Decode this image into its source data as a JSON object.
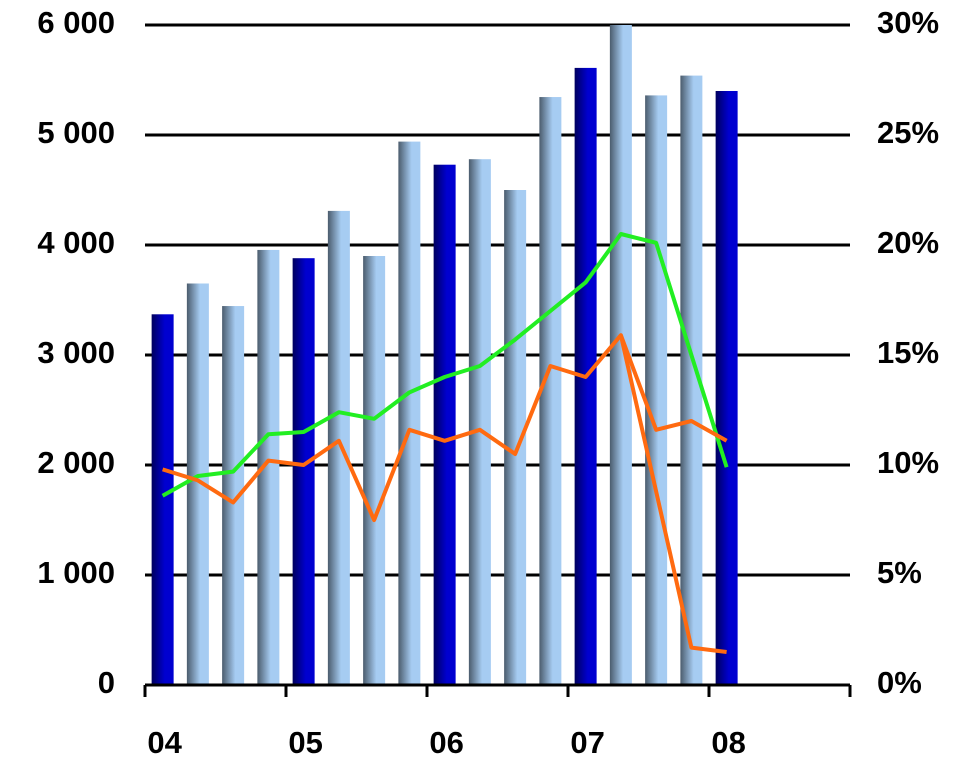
{
  "chart_data": {
    "type": "bar",
    "categories": [
      "04",
      null,
      null,
      null,
      "05",
      null,
      null,
      null,
      "06",
      null,
      null,
      null,
      "07",
      null,
      null,
      null,
      "08",
      null,
      null,
      null
    ],
    "series": [
      {
        "type": "bar",
        "colors": [
          "#0000d0",
          "#a6ccf2",
          "#a6ccf2",
          "#a6ccf2",
          "#0000d0",
          "#a6ccf2",
          "#a6ccf2",
          "#a6ccf2",
          "#0000d0",
          "#a6ccf2",
          "#a6ccf2",
          "#a6ccf2",
          "#0000d0",
          "#a6ccf2",
          "#a6ccf2",
          "#a6ccf2",
          "#0000d0",
          null,
          null,
          null
        ],
        "values": [
          3370,
          3650,
          3445,
          3955,
          3880,
          4310,
          3900,
          4940,
          4730,
          4780,
          4500,
          5345,
          5610,
          6000,
          5360,
          5540,
          5400,
          null,
          null,
          null
        ]
      },
      {
        "type": "line",
        "axis": "y2",
        "color": "#22ee22",
        "values": [
          8.6,
          9.5,
          9.7,
          11.4,
          11.5,
          12.4,
          12.1,
          13.3,
          14.0,
          14.5,
          15.7,
          17.0,
          18.3,
          20.5,
          20.1,
          15.0,
          9.9,
          null,
          null,
          null
        ]
      },
      {
        "type": "line",
        "axis": "y2",
        "color": "#ff6a10",
        "values": [
          9.8,
          9.3,
          8.3,
          10.2,
          10.0,
          11.1,
          7.5,
          11.6,
          11.1,
          11.6,
          10.5,
          14.5,
          14.0,
          15.9,
          11.6,
          12.0,
          11.1,
          null,
          null,
          null
        ]
      },
      {
        "type": "line",
        "axis": "y2",
        "color": "#ff6a10",
        "values": [
          null,
          null,
          null,
          null,
          null,
          null,
          null,
          null,
          null,
          null,
          null,
          null,
          null,
          15.9,
          null,
          1.7,
          1.5,
          null,
          null,
          null
        ]
      }
    ],
    "ylim": [
      0,
      6000
    ],
    "yticks": [
      0,
      {
        "value": 1000,
        "label": "1 000"
      },
      {
        "value": 2000,
        "label": "2 000"
      },
      {
        "value": 3000,
        "label": "3 000"
      },
      {
        "value": 4000,
        "label": "4 000"
      },
      {
        "value": 5000,
        "label": "5 000"
      },
      {
        "value": 6000,
        "label": "6 000"
      }
    ],
    "y2lim": [
      0,
      30
    ],
    "y2ticks": [
      {
        "value": 0,
        "label": "0%"
      },
      {
        "value": 5,
        "label": "5%"
      },
      {
        "value": 10,
        "label": "10%"
      },
      {
        "value": 15,
        "label": "15%"
      },
      {
        "value": 20,
        "label": "20%"
      },
      {
        "value": 25,
        "label": "25%"
      },
      {
        "value": 30,
        "label": "30%"
      }
    ],
    "grid": true
  }
}
